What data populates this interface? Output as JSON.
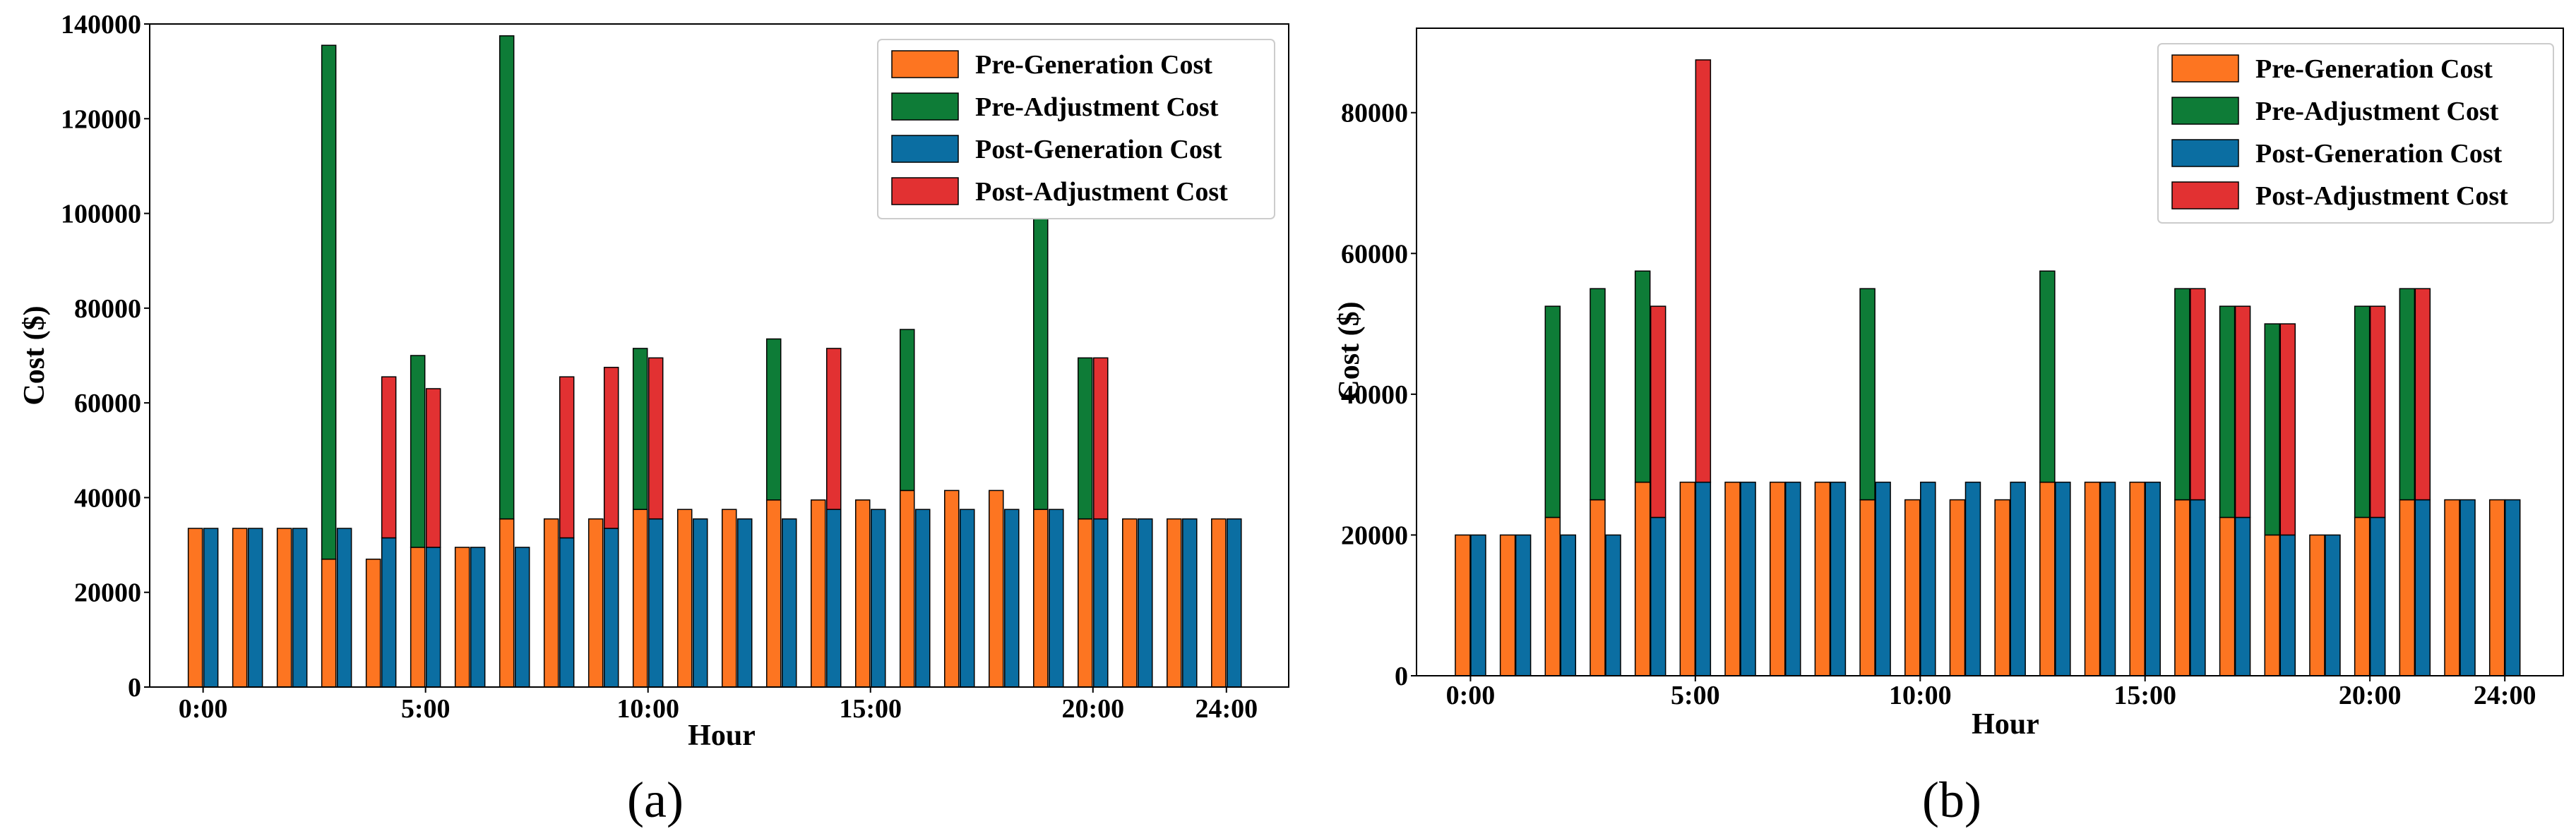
{
  "colors": {
    "pre_generation": "#fd7521",
    "pre_adjustment": "#0e7c37",
    "post_generation": "#0b6ea2",
    "post_adjustment": "#e23132"
  },
  "chart_data": [
    {
      "type": "bar",
      "panel_label": "(a)",
      "xlabel": "Hour",
      "ylabel": "Cost ($)",
      "ylim": [
        0,
        140000
      ],
      "yticks": [
        0,
        20000,
        40000,
        60000,
        80000,
        100000,
        120000,
        140000
      ],
      "xlim": [
        -1.2,
        24.4
      ],
      "xticks": [
        {
          "hour": 0,
          "label": "0:00"
        },
        {
          "hour": 5,
          "label": "5:00"
        },
        {
          "hour": 10,
          "label": "10:00"
        },
        {
          "hour": 15,
          "label": "15:00"
        },
        {
          "hour": 20,
          "label": "20:00"
        },
        {
          "hour": 23,
          "label": "24:00"
        }
      ],
      "legend": [
        "Pre-Generation Cost",
        "Pre-Adjustment Cost",
        "Post-Generation Cost",
        "Post-Adjustment Cost"
      ],
      "legend_position": "top-right",
      "hours": [
        0,
        1,
        2,
        3,
        4,
        5,
        6,
        7,
        8,
        9,
        10,
        11,
        12,
        13,
        14,
        15,
        16,
        17,
        18,
        19,
        20,
        21,
        22,
        23
      ],
      "series": [
        {
          "name": "Pre-Generation Cost",
          "values": [
            33500,
            33500,
            33500,
            27000,
            27000,
            29500,
            29500,
            35500,
            35500,
            35500,
            37500,
            37500,
            37500,
            39500,
            39500,
            39500,
            41500,
            41500,
            41500,
            37500,
            35500,
            35500,
            35500,
            35500
          ]
        },
        {
          "name": "Pre-Adjustment Cost",
          "values": [
            0,
            0,
            0,
            108500,
            0,
            40500,
            0,
            102000,
            0,
            0,
            34000,
            0,
            0,
            34000,
            0,
            0,
            34000,
            0,
            0,
            67500,
            34000,
            0,
            0,
            0
          ]
        },
        {
          "name": "Post-Generation Cost",
          "values": [
            33500,
            33500,
            33500,
            33500,
            31500,
            29500,
            29500,
            29500,
            31500,
            33500,
            35500,
            35500,
            35500,
            35500,
            37500,
            37500,
            37500,
            37500,
            37500,
            37500,
            35500,
            35500,
            35500,
            35500
          ]
        },
        {
          "name": "Post-Adjustment Cost",
          "values": [
            0,
            0,
            0,
            0,
            34000,
            33500,
            0,
            0,
            34000,
            34000,
            34000,
            0,
            0,
            0,
            34000,
            0,
            0,
            0,
            0,
            0,
            34000,
            0,
            0,
            0
          ]
        }
      ]
    },
    {
      "type": "bar",
      "panel_label": "(b)",
      "xlabel": "Hour",
      "ylabel": "Cost ($)",
      "ylim": [
        0,
        92000
      ],
      "yticks": [
        0,
        20000,
        40000,
        60000,
        80000
      ],
      "xlim": [
        -1.2,
        24.3
      ],
      "xticks": [
        {
          "hour": 0,
          "label": "0:00"
        },
        {
          "hour": 5,
          "label": "5:00"
        },
        {
          "hour": 10,
          "label": "10:00"
        },
        {
          "hour": 15,
          "label": "15:00"
        },
        {
          "hour": 20,
          "label": "20:00"
        },
        {
          "hour": 23,
          "label": "24:00"
        }
      ],
      "legend": [
        "Pre-Generation Cost",
        "Pre-Adjustment Cost",
        "Post-Generation Cost",
        "Post-Adjustment Cost"
      ],
      "legend_position": "top-right",
      "hours": [
        0,
        1,
        2,
        3,
        4,
        5,
        6,
        7,
        8,
        9,
        10,
        11,
        12,
        13,
        14,
        15,
        16,
        17,
        18,
        19,
        20,
        21,
        22,
        23
      ],
      "series": [
        {
          "name": "Pre-Generation Cost",
          "values": [
            20000,
            20000,
            22500,
            25000,
            27500,
            27500,
            27500,
            27500,
            27500,
            25000,
            25000,
            25000,
            25000,
            27500,
            27500,
            27500,
            25000,
            22500,
            20000,
            20000,
            22500,
            25000,
            25000,
            25000
          ]
        },
        {
          "name": "Pre-Adjustment Cost",
          "values": [
            0,
            0,
            30000,
            30000,
            30000,
            0,
            0,
            0,
            0,
            30000,
            0,
            0,
            0,
            30000,
            0,
            0,
            30000,
            30000,
            30000,
            0,
            30000,
            30000,
            0,
            0
          ]
        },
        {
          "name": "Post-Generation Cost",
          "values": [
            20000,
            20000,
            20000,
            20000,
            22500,
            27500,
            27500,
            27500,
            27500,
            27500,
            27500,
            27500,
            27500,
            27500,
            27500,
            27500,
            25000,
            22500,
            20000,
            20000,
            22500,
            25000,
            25000,
            25000
          ]
        },
        {
          "name": "Post-Adjustment Cost",
          "values": [
            0,
            0,
            0,
            0,
            30000,
            60000,
            0,
            0,
            0,
            0,
            0,
            0,
            0,
            0,
            0,
            0,
            30000,
            30000,
            30000,
            0,
            30000,
            30000,
            0,
            0
          ]
        }
      ]
    }
  ]
}
